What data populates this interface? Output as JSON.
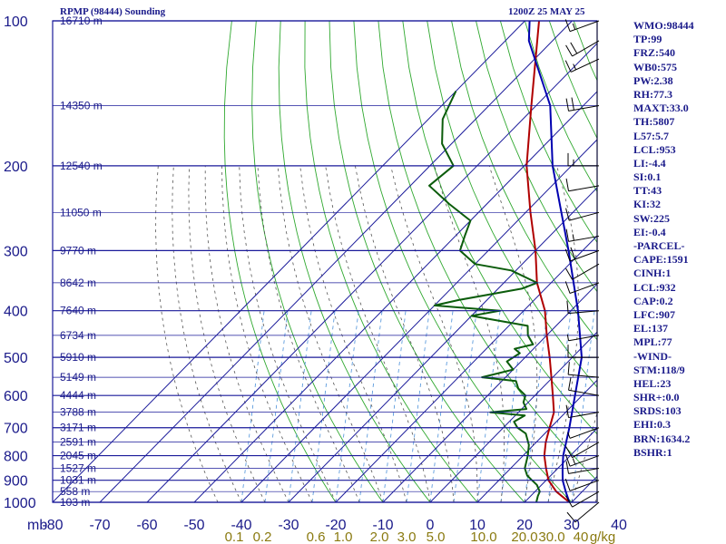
{
  "header": {
    "station": "RPMP (98444) Sounding",
    "time": "1200Z 25 MAY 25"
  },
  "chart_data": {
    "type": "skew-t",
    "title": "RPMP (98444) Sounding",
    "subtitle": "1200Z 25 MAY 25",
    "pressure_axis": {
      "unit_label": "mb",
      "ticks": [
        100,
        200,
        300,
        400,
        500,
        600,
        700,
        800,
        900,
        1000
      ],
      "range": [
        100,
        1000
      ],
      "scale": "log"
    },
    "temperature_axis": {
      "ticks": [
        -80,
        -70,
        -60,
        -50,
        -40,
        -30,
        -20,
        -10,
        0,
        10,
        20,
        30,
        40
      ],
      "tick_labels": [
        "-80",
        "-70",
        "-60",
        "-50",
        "-40",
        "-30",
        "-20",
        "-10",
        "0",
        "10",
        "20",
        "30",
        "40"
      ]
    },
    "height_labels": [
      {
        "p": 100,
        "label": "16710 m"
      },
      {
        "p": 150,
        "label": "14350 m"
      },
      {
        "p": 200,
        "label": "12540 m"
      },
      {
        "p": 250,
        "label": "11050 m"
      },
      {
        "p": 300,
        "label": "9770 m"
      },
      {
        "p": 350,
        "label": "8642 m"
      },
      {
        "p": 400,
        "label": "7640 m"
      },
      {
        "p": 450,
        "label": "6734 m"
      },
      {
        "p": 500,
        "label": "5910 m"
      },
      {
        "p": 550,
        "label": "5149 m"
      },
      {
        "p": 600,
        "label": "4444 m"
      },
      {
        "p": 650,
        "label": "3788 m"
      },
      {
        "p": 700,
        "label": "3171 m"
      },
      {
        "p": 750,
        "label": "2591 m"
      },
      {
        "p": 800,
        "label": "2045 m"
      },
      {
        "p": 850,
        "label": "1527 m"
      },
      {
        "p": 900,
        "label": "1031 m"
      },
      {
        "p": 950,
        "label": "558 m"
      },
      {
        "p": 1000,
        "label": "103 m"
      }
    ],
    "mixing_ratio_labels": [
      "0.1",
      "0.2",
      "0.6",
      "1.0",
      "2.0",
      "3.0",
      "5.0",
      "10.0",
      "20.0",
      "30.0",
      "40",
      "g/kg"
    ],
    "series": [
      {
        "name": "Temperature",
        "color": "#b00000",
        "points": [
          [
            1000,
            29.5
          ],
          [
            950,
            24.5
          ],
          [
            900,
            20.5
          ],
          [
            850,
            17.5
          ],
          [
            800,
            14.5
          ],
          [
            750,
            12
          ],
          [
            700,
            9.8
          ],
          [
            650,
            7.5
          ],
          [
            600,
            3.8
          ],
          [
            550,
            -0.3
          ],
          [
            500,
            -4.8
          ],
          [
            450,
            -10
          ],
          [
            400,
            -15.5
          ],
          [
            350,
            -23
          ],
          [
            300,
            -30
          ],
          [
            250,
            -39
          ],
          [
            200,
            -49.5
          ],
          [
            150,
            -61
          ],
          [
            100,
            -77
          ]
        ]
      },
      {
        "name": "Dewpoint",
        "color": "#0b5c0b",
        "points": [
          [
            1000,
            22.5
          ],
          [
            970,
            21.5
          ],
          [
            950,
            21
          ],
          [
            920,
            19
          ],
          [
            900,
            17
          ],
          [
            880,
            15
          ],
          [
            850,
            13
          ],
          [
            800,
            11
          ],
          [
            760,
            9
          ],
          [
            720,
            6
          ],
          [
            700,
            3
          ],
          [
            680,
            1
          ],
          [
            660,
            2
          ],
          [
            650,
            -6
          ],
          [
            640,
            1
          ],
          [
            620,
            -1
          ],
          [
            600,
            -2
          ],
          [
            580,
            -5
          ],
          [
            560,
            -7
          ],
          [
            550,
            -15
          ],
          [
            530,
            -10
          ],
          [
            510,
            -13
          ],
          [
            490,
            -12
          ],
          [
            480,
            -14
          ],
          [
            470,
            -11
          ],
          [
            450,
            -14
          ],
          [
            430,
            -16
          ],
          [
            410,
            -30
          ],
          [
            400,
            -25
          ],
          [
            390,
            -40
          ],
          [
            380,
            -36
          ],
          [
            360,
            -25
          ],
          [
            350,
            -23
          ],
          [
            330,
            -31
          ],
          [
            320,
            -40
          ],
          [
            300,
            -46
          ],
          [
            280,
            -48
          ],
          [
            260,
            -50
          ],
          [
            240,
            -58
          ],
          [
            220,
            -66
          ],
          [
            200,
            -65
          ],
          [
            180,
            -72
          ],
          [
            160,
            -77
          ],
          [
            140,
            -80
          ]
        ]
      },
      {
        "name": "Parcel",
        "color": "#0000b0",
        "points": [
          [
            1000,
            29.5
          ],
          [
            950,
            26.5
          ],
          [
            900,
            23.5
          ],
          [
            850,
            21
          ],
          [
            800,
            18.5
          ],
          [
            700,
            14
          ],
          [
            600,
            8.5
          ],
          [
            500,
            2
          ],
          [
            400,
            -8.5
          ],
          [
            300,
            -23
          ],
          [
            200,
            -44
          ],
          [
            150,
            -57
          ],
          [
            110,
            -75
          ],
          [
            100,
            -79
          ]
        ]
      }
    ],
    "wind_barbs": {
      "pressure_levels": [
        100,
        110,
        120,
        150,
        200,
        220,
        250,
        280,
        300,
        320,
        350,
        400,
        450,
        500,
        550,
        600,
        650,
        700,
        750,
        800,
        850,
        900,
        950,
        1000
      ],
      "directions_deg": [
        250,
        240,
        245,
        260,
        270,
        260,
        255,
        260,
        250,
        240,
        250,
        265,
        260,
        270,
        275,
        280,
        260,
        250,
        240,
        250,
        260,
        250,
        240,
        230
      ],
      "speeds_kt": [
        15,
        20,
        15,
        20,
        15,
        10,
        10,
        15,
        20,
        10,
        10,
        10,
        5,
        10,
        10,
        10,
        10,
        5,
        10,
        15,
        10,
        10,
        10,
        10
      ]
    }
  },
  "indices": [
    "WMO:98444",
    "TP:99",
    "FRZ:540",
    "WB0:575",
    "PW:2.38",
    "RH:77.3",
    "MAXT:33.0",
    "TH:5807",
    "L57:5.7",
    "LCL:953",
    "LI:-4.4",
    "SI:0.1",
    "TT:43",
    "KI:32",
    "SW:225",
    "EI:-0.4",
    "-PARCEL-",
    "CAPE:1591",
    "CINH:1",
    "LCL:932",
    "CAP:0.2",
    "LFC:907",
    "EL:137",
    "MPL:77",
    "-WIND-",
    "STM:118/9",
    "HEL:23",
    "SHR+:0.0",
    "SRDS:103",
    "EHI:0.3",
    "BRN:1634.2",
    "BSHR:1"
  ],
  "colors": {
    "grid": "#1a1a9a",
    "dry_adiabat": "#2fa82f",
    "moist_adiabat": "#555555",
    "mixing_ratio": "#4a90d9",
    "label_text": "#1a1a8a",
    "mixing_label": "#8a7a10"
  }
}
